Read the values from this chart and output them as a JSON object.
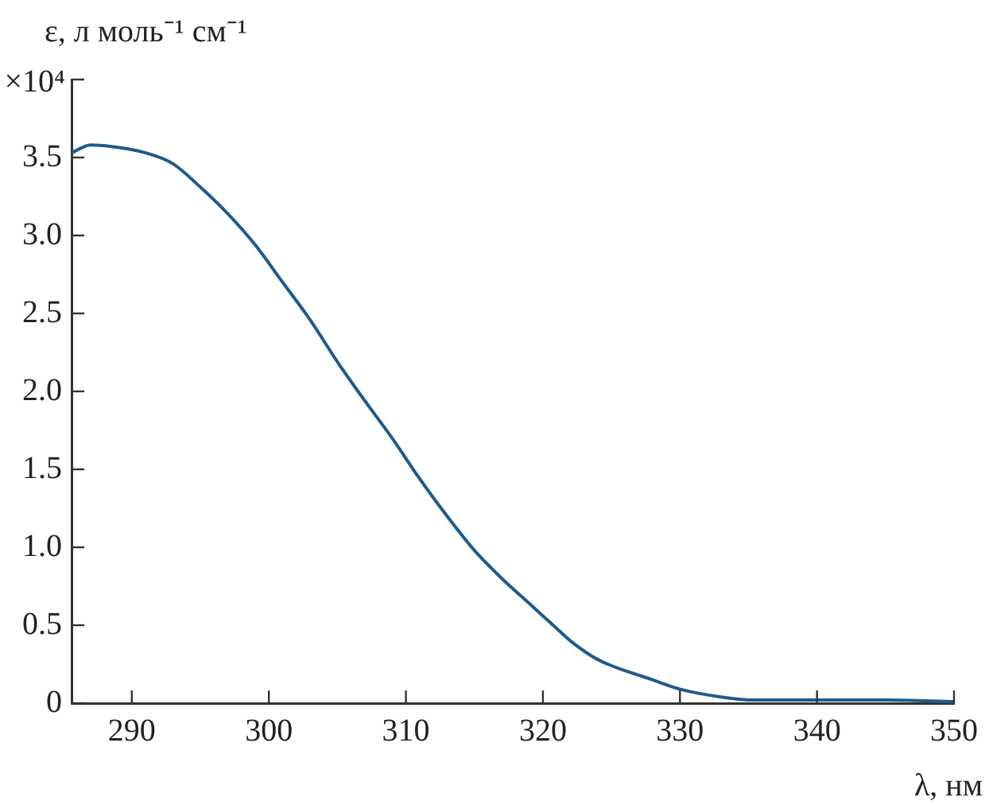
{
  "chart_data": {
    "type": "line",
    "xlabel": "λ, нм",
    "ylabel": "ε, л моль⁻¹ см⁻¹\n×10⁴",
    "x": [
      285.6,
      287,
      288.5,
      291,
      293,
      295,
      297,
      299,
      301,
      303,
      305,
      307,
      309,
      311,
      313,
      315,
      317,
      319,
      321,
      322,
      324,
      328,
      330,
      333,
      335.5,
      338.5,
      345,
      350
    ],
    "series": [
      {
        "color": "#1f5a8c",
        "values": [
          3.53,
          3.58,
          3.57,
          3.53,
          3.46,
          3.31,
          3.14,
          2.94,
          2.7,
          2.46,
          2.19,
          1.94,
          1.7,
          1.44,
          1.2,
          0.98,
          0.8,
          0.64,
          0.48,
          0.4,
          0.28,
          0.15,
          0.09,
          0.04,
          0.02,
          0.02,
          0.02,
          0.01
        ]
      }
    ],
    "xlim": [
      285.6,
      350
    ],
    "xticks": [
      290,
      300,
      310,
      320,
      330,
      340,
      350
    ],
    "ylim": [
      0,
      4
    ],
    "yticks": [
      {
        "value": 0,
        "label": "0"
      },
      0.5,
      {
        "value": 1,
        "label": "1.0"
      },
      1.5,
      {
        "value": 2,
        "label": "2.0"
      },
      2.5,
      {
        "value": 3,
        "label": "3.0"
      },
      3.5,
      {
        "value": 4,
        "label": null
      }
    ],
    "grid": false,
    "legend": false,
    "marker": "none",
    "line_style": "solid"
  }
}
